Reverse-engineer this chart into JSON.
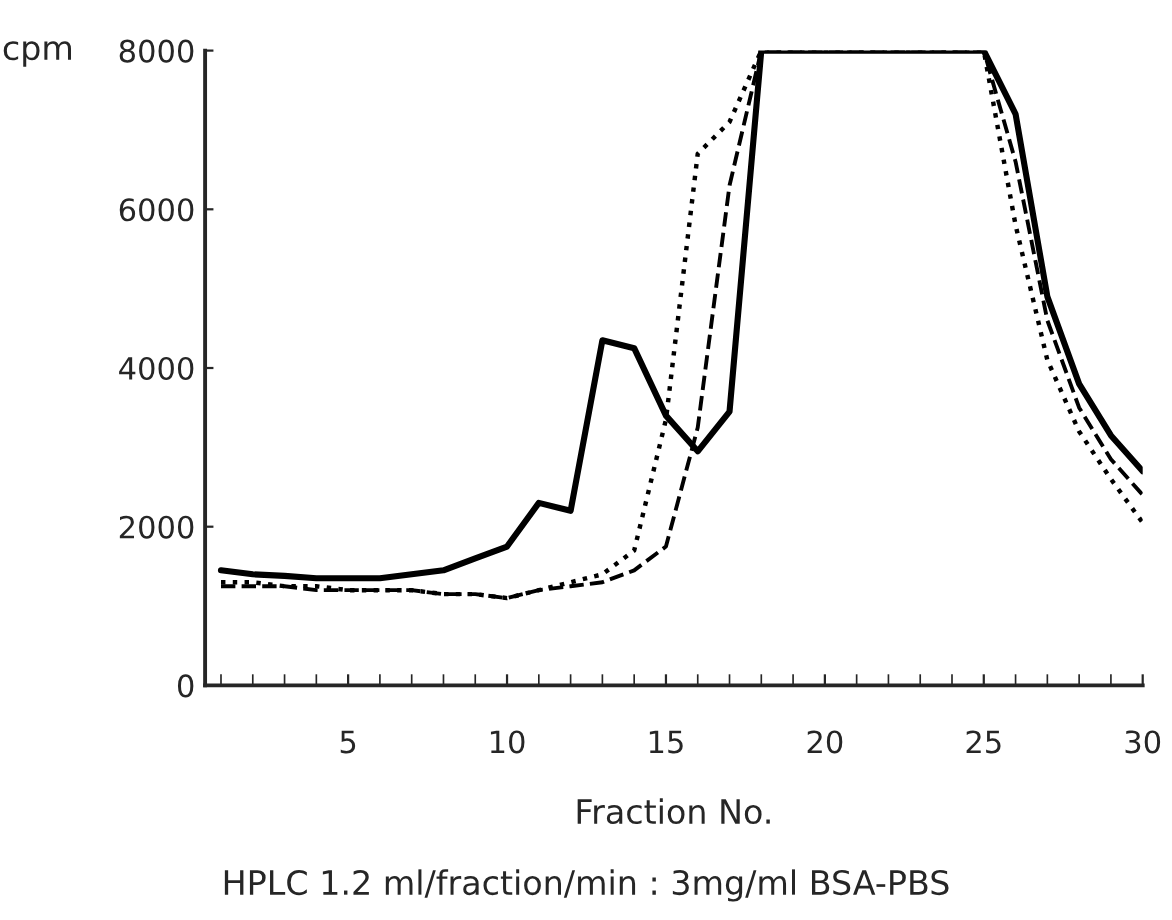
{
  "chart_data": {
    "type": "line",
    "xlabel": "Fraction No.",
    "ylabel": "cpm",
    "annotations": [
      "HPLC 1.2 ml/fraction/min : 3mg/ml BSA-PBS"
    ],
    "x": [
      1,
      2,
      3,
      4,
      5,
      6,
      7,
      8,
      9,
      10,
      11,
      12,
      13,
      14,
      15,
      16,
      17,
      18,
      19,
      20,
      21,
      22,
      23,
      24,
      25,
      26,
      27,
      28,
      29,
      30
    ],
    "series": [
      {
        "color": "#000000",
        "line_style": "solid",
        "values": [
          1450,
          1400,
          1380,
          1350,
          1350,
          1350,
          1400,
          1450,
          1600,
          1750,
          2300,
          2200,
          4350,
          4250,
          3400,
          2950,
          3450,
          8000,
          8000,
          8000,
          8000,
          8000,
          8000,
          8000,
          8000,
          7200,
          4900,
          3800,
          3150,
          2700
        ]
      },
      {
        "color": "#000000",
        "line_style": "dashed",
        "values": [
          1250,
          1250,
          1250,
          1200,
          1200,
          1200,
          1200,
          1150,
          1150,
          1100,
          1200,
          1250,
          1300,
          1450,
          1750,
          3250,
          6300,
          8000,
          8000,
          8000,
          8000,
          8000,
          8000,
          8000,
          8000,
          6600,
          4600,
          3500,
          2850,
          2400
        ]
      },
      {
        "color": "#000000",
        "line_style": "dotted",
        "values": [
          1300,
          1300,
          1250,
          1250,
          1200,
          1200,
          1200,
          1150,
          1150,
          1100,
          1200,
          1300,
          1400,
          1700,
          3350,
          6700,
          7100,
          8000,
          8000,
          8000,
          8000,
          8000,
          8000,
          8000,
          8000,
          5800,
          4100,
          3200,
          2600,
          2050
        ]
      }
    ],
    "xlim": [
      0.5,
      30
    ],
    "xticks": [
      5,
      10,
      15,
      20,
      25,
      30
    ],
    "ylim": [
      0,
      8000
    ],
    "yticks": [
      0,
      2000,
      4000,
      6000,
      8000
    ],
    "grid": false,
    "legend": false,
    "marker": "none"
  }
}
